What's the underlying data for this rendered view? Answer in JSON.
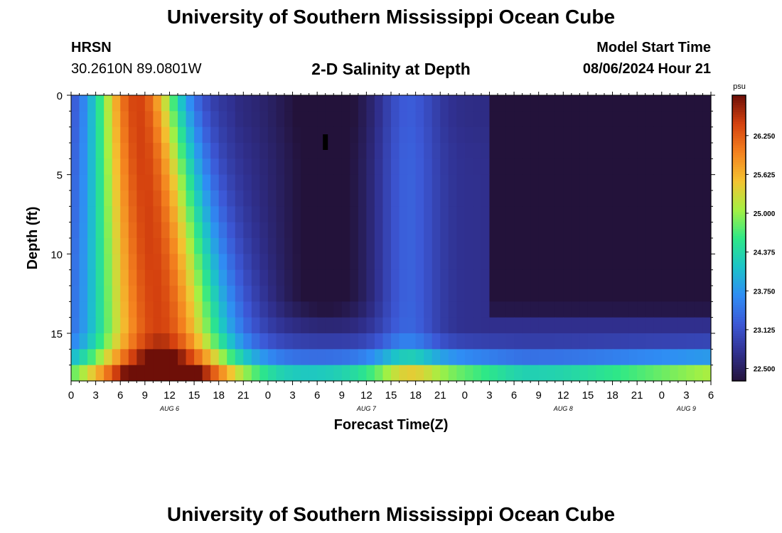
{
  "header": {
    "title": "University of Southern Mississippi Ocean Cube",
    "station_id": "HRSN",
    "coordinates": "30.2610N  89.0801W",
    "subtitle": "2-D Salinity at Depth",
    "model_start_label": "Model Start Time",
    "model_start_value": "08/06/2024 Hour 21"
  },
  "footer": {
    "title": "University of Southern Mississippi Ocean Cube"
  },
  "colors": {
    "colormap": [
      "#23123a",
      "#30308f",
      "#3c58d6",
      "#2f8df4",
      "#1cc3c9",
      "#2ee887",
      "#a5f043",
      "#f4c331",
      "#f4821f",
      "#d5420f",
      "#6e0f08"
    ]
  },
  "chart_data": {
    "type": "heatmap",
    "title": "2-D Salinity at Depth",
    "xlabel": "Forecast Time(Z)",
    "ylabel": "Depth (ft)",
    "x_range_hours": [
      0,
      78
    ],
    "y_range_ft": [
      0,
      18
    ],
    "x_ticks": [
      "0",
      "3",
      "6",
      "9",
      "12",
      "15",
      "18",
      "21",
      "0",
      "3",
      "6",
      "9",
      "12",
      "15",
      "18",
      "21",
      "0",
      "3",
      "6",
      "9",
      "12",
      "15",
      "18",
      "21",
      "0",
      "3",
      "6"
    ],
    "y_ticks": [
      "0",
      "5",
      "10",
      "15"
    ],
    "date_labels": [
      {
        "text": "AUG 6",
        "hour": 12
      },
      {
        "text": "AUG 7",
        "hour": 36
      },
      {
        "text": "AUG 8",
        "hour": 60
      },
      {
        "text": "AUG 9",
        "hour": 75
      }
    ],
    "colorbar": {
      "unit": "psu",
      "range": [
        22.3,
        26.9
      ],
      "ticks": [
        "22.500",
        "23.125",
        "23.750",
        "24.375",
        "25.000",
        "25.625",
        "26.250"
      ]
    },
    "marker": {
      "hour": 31,
      "depth_ft": 3
    }
  }
}
